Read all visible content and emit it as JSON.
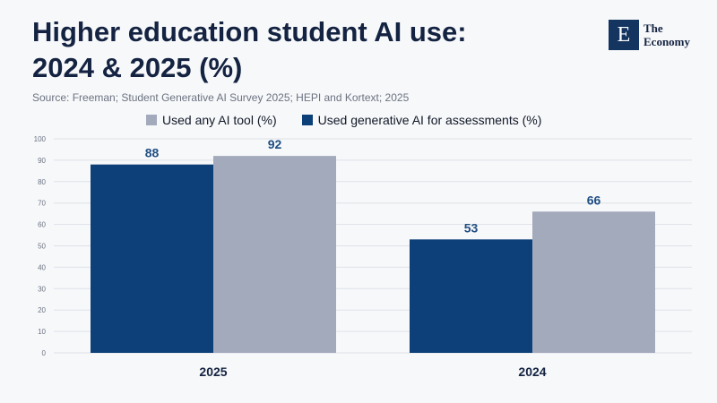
{
  "title": {
    "line1": "Higher education student AI use:",
    "line2": "2024 & 2025 (%)"
  },
  "source": "Source: Freeman; Student Generative AI Survey 2025; HEPI and Kortext; 2025",
  "logo": {
    "mark": "E",
    "line1": "The",
    "line2": "Economy"
  },
  "colors": {
    "any_ai": "#a3aabc",
    "gen_ai": "#0d3f78",
    "label": "#1f4e82",
    "grid": "#dde1e7"
  },
  "legend": [
    {
      "label": "Used any AI tool (%)",
      "color": "#a3aabc"
    },
    {
      "label": "Used generative AI for assessments (%)",
      "color": "#0d3f78"
    }
  ],
  "chart_data": {
    "type": "bar",
    "categories": [
      "2025",
      "2024"
    ],
    "series": [
      {
        "name": "Used generative AI for assessments (%)",
        "values": [
          88,
          53
        ],
        "color": "#0d3f78"
      },
      {
        "name": "Used any AI tool (%)",
        "values": [
          92,
          66
        ],
        "color": "#a3aabc"
      }
    ],
    "ylim": [
      0,
      100
    ],
    "yticks": [
      0,
      10,
      20,
      30,
      40,
      50,
      60,
      70,
      80,
      90,
      100
    ],
    "grid": true,
    "data_labels": true,
    "legend_position": "top"
  }
}
